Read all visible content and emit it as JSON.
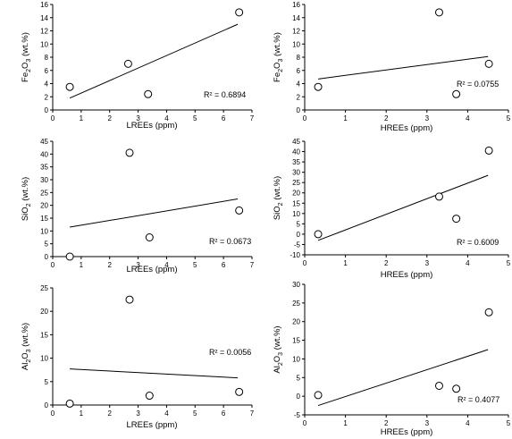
{
  "chart_data": [
    {
      "id": "p1",
      "type": "scatter",
      "x": [
        0.6,
        2.65,
        3.35,
        6.55
      ],
      "y": [
        3.5,
        7.0,
        2.4,
        14.8
      ],
      "trendline": {
        "x1": 0.6,
        "y1": 1.8,
        "x2": 6.5,
        "y2": 13.0
      },
      "r2_label": "R² = 0.6894",
      "xlabel": "LREEs (ppm)",
      "ylabel": {
        "prefix": "Fe",
        "sub": "2",
        "mid": "O",
        "sub2": "3",
        "suffix": " (wt.%)"
      },
      "xlim": [
        0,
        7
      ],
      "ylim": [
        0,
        16
      ],
      "xticks": [
        "0",
        "1",
        "2",
        "3",
        "4",
        "5",
        "6",
        "7"
      ],
      "yticks": [
        "0",
        "2",
        "4",
        "6",
        "8",
        "10",
        "12",
        "14",
        "16"
      ]
    },
    {
      "id": "p2",
      "type": "scatter",
      "x": [
        0.33,
        3.3,
        3.72,
        4.52
      ],
      "y": [
        3.5,
        14.8,
        2.4,
        7.0
      ],
      "trendline": {
        "x1": 0.33,
        "y1": 4.7,
        "x2": 4.5,
        "y2": 8.1
      },
      "r2_label": "R² = 0.0755",
      "xlabel": "HREEs (ppm)",
      "ylabel": {
        "prefix": "Fe",
        "sub": "2",
        "mid": "O",
        "sub2": "3",
        "suffix": " (wt.%)"
      },
      "xlim": [
        0,
        5
      ],
      "ylim": [
        0,
        16
      ],
      "xticks": [
        "0",
        "1",
        "2",
        "3",
        "4",
        "5"
      ],
      "yticks": [
        "0",
        "2",
        "4",
        "6",
        "8",
        "10",
        "12",
        "14",
        "16"
      ]
    },
    {
      "id": "p3",
      "type": "scatter",
      "x": [
        0.6,
        2.7,
        3.4,
        6.55
      ],
      "y": [
        0.0,
        40.5,
        7.5,
        18.0
      ],
      "trendline": {
        "x1": 0.6,
        "y1": 11.5,
        "x2": 6.5,
        "y2": 22.5
      },
      "r2_label": "R² = 0.0673",
      "xlabel": "LREEs (ppm)",
      "ylabel": {
        "prefix": "SiO",
        "sub": "2",
        "mid": "",
        "sub2": "",
        "suffix": " (wt.%)"
      },
      "xlim": [
        0,
        7
      ],
      "ylim": [
        0,
        45
      ],
      "xticks": [
        "0",
        "1",
        "2",
        "3",
        "4",
        "5",
        "6",
        "7"
      ],
      "yticks": [
        "0",
        "5",
        "10",
        "15",
        "20",
        "25",
        "30",
        "35",
        "40",
        "45"
      ]
    },
    {
      "id": "p4",
      "type": "scatter",
      "x": [
        0.33,
        3.3,
        3.72,
        4.52
      ],
      "y": [
        0.0,
        18.2,
        7.5,
        40.5
      ],
      "trendline": {
        "x1": 0.33,
        "y1": -3.0,
        "x2": 4.5,
        "y2": 28.5
      },
      "r2_label": "R² = 0.6009",
      "xlabel": "HREEs (ppm)",
      "ylabel": {
        "prefix": "SiO",
        "sub": "2",
        "mid": "",
        "sub2": "",
        "suffix": " (wt.%)"
      },
      "xlim": [
        0,
        5
      ],
      "ylim": [
        -10,
        45
      ],
      "xticks": [
        "0",
        "1",
        "2",
        "3",
        "4",
        "5"
      ],
      "yticks": [
        "-10",
        "-5",
        "0",
        "5",
        "10",
        "15",
        "20",
        "25",
        "30",
        "35",
        "40",
        "45"
      ]
    },
    {
      "id": "p5",
      "type": "scatter",
      "x": [
        0.6,
        2.7,
        3.4,
        6.55
      ],
      "y": [
        0.3,
        22.5,
        2.0,
        2.8
      ],
      "trendline": {
        "x1": 0.6,
        "y1": 7.7,
        "x2": 6.5,
        "y2": 5.8
      },
      "r2_label": "R² = 0.0056",
      "xlabel": "LREEs (ppm)",
      "ylabel": {
        "prefix": "Al",
        "sub": "2",
        "mid": "O",
        "sub2": "3",
        "suffix": " (wt.%)"
      },
      "xlim": [
        0,
        7
      ],
      "ylim": [
        0,
        25
      ],
      "xticks": [
        "0",
        "1",
        "2",
        "3",
        "4",
        "5",
        "6",
        "7"
      ],
      "yticks": [
        "0",
        "5",
        "10",
        "15",
        "20",
        "25"
      ]
    },
    {
      "id": "p6",
      "type": "scatter",
      "x": [
        0.33,
        3.3,
        3.72,
        4.52
      ],
      "y": [
        0.3,
        2.8,
        2.0,
        22.5
      ],
      "trendline": {
        "x1": 0.33,
        "y1": -2.5,
        "x2": 4.5,
        "y2": 12.5
      },
      "r2_label": "R² = 0.4077",
      "xlabel": "HREEs (ppm)",
      "ylabel": {
        "prefix": "Al",
        "sub": "2",
        "mid": "O",
        "sub2": "3",
        "suffix": " (wt.%)"
      },
      "xlim": [
        0,
        5
      ],
      "ylim": [
        -5,
        30
      ],
      "xticks": [
        "0",
        "1",
        "2",
        "3",
        "4",
        "5"
      ],
      "yticks": [
        "-5",
        "0",
        "5",
        "10",
        "15",
        "20",
        "25",
        "30"
      ]
    }
  ]
}
